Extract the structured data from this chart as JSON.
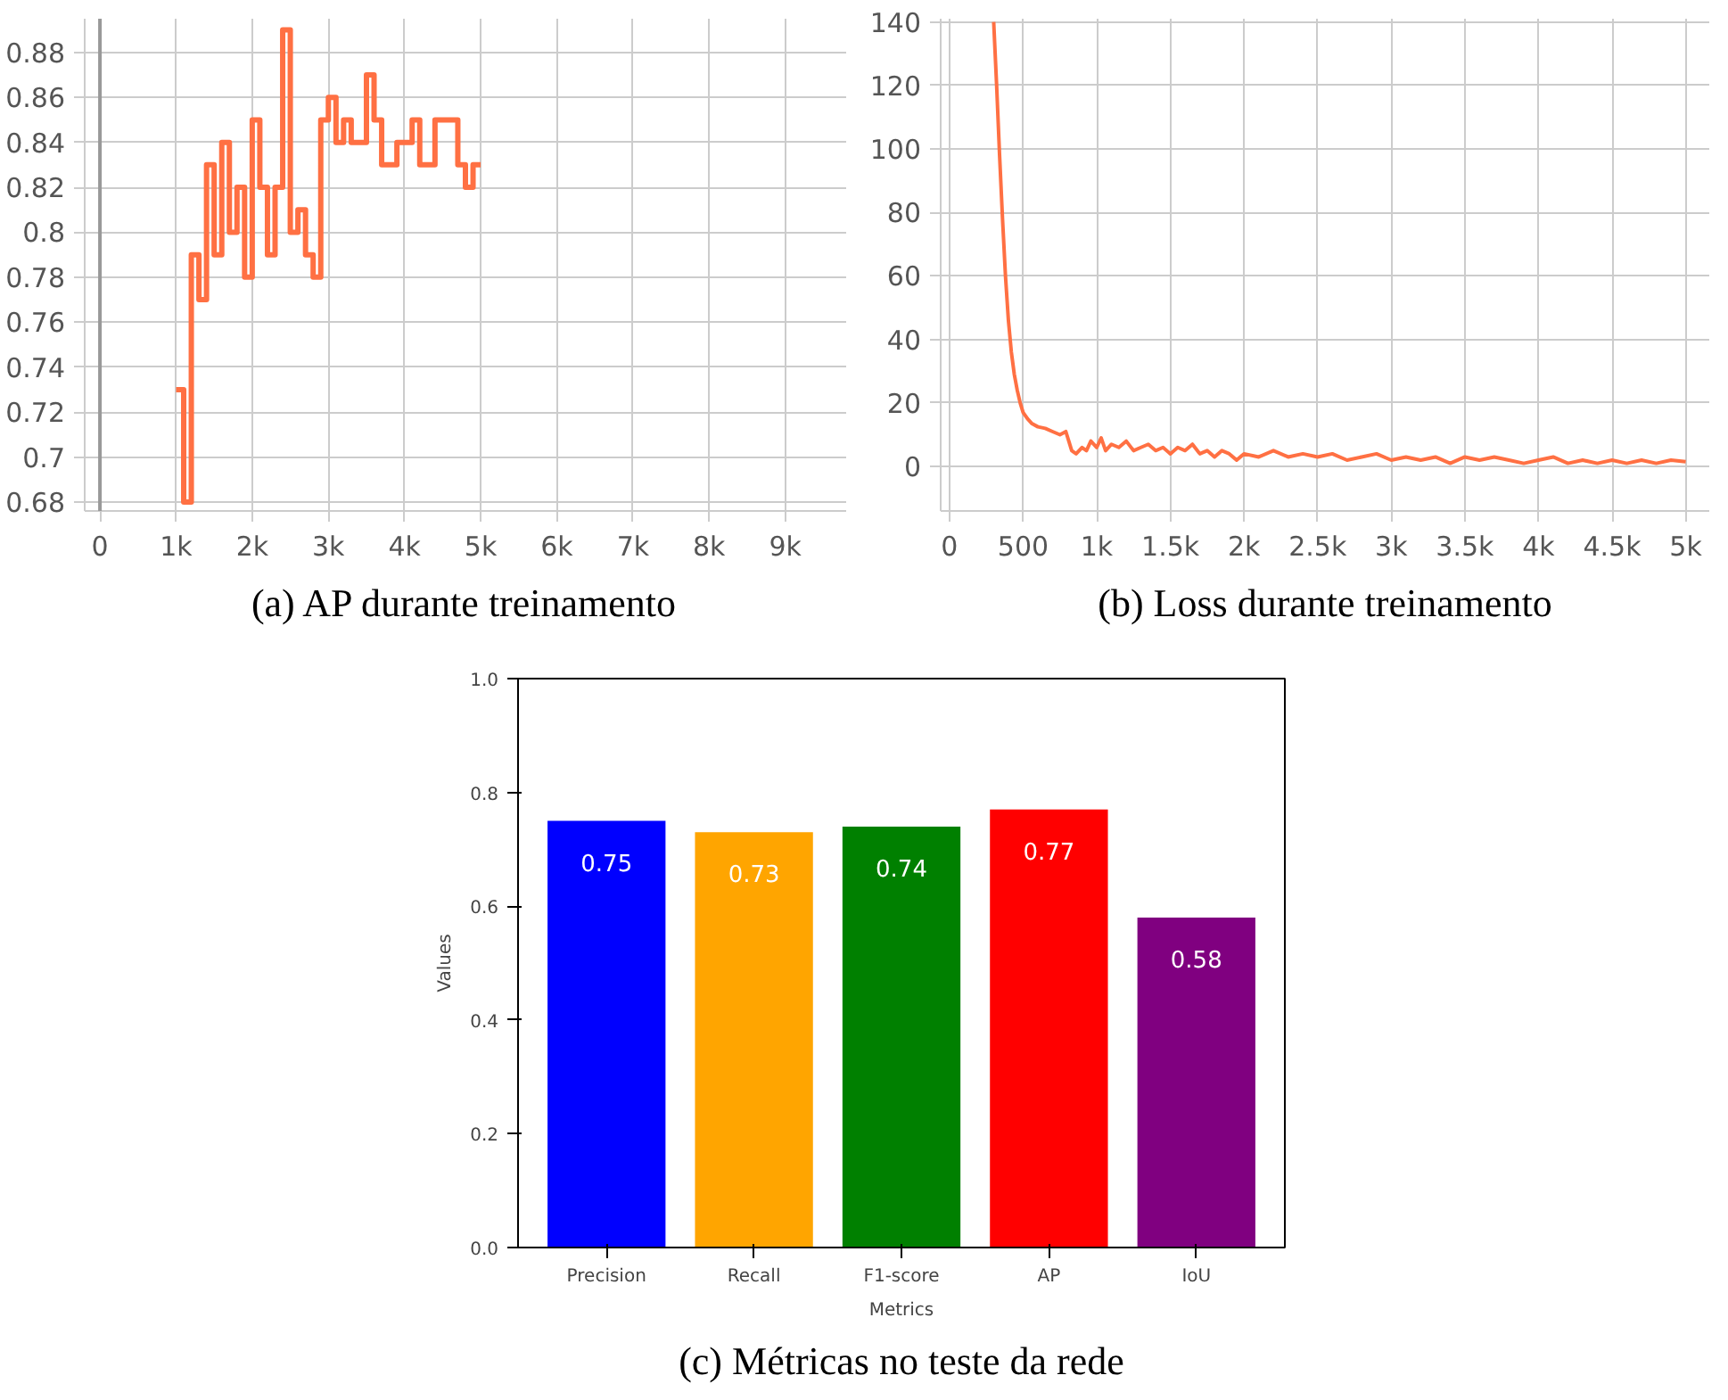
{
  "chart_data": [
    {
      "type": "step",
      "annotations": [
        "(a) AP durante treinamento"
      ],
      "grid": true,
      "xlim": [
        -200,
        9800
      ],
      "ylim": [
        0.676,
        0.895
      ],
      "xticks": [
        {
          "value": 0,
          "label": "0"
        },
        {
          "value": 1000,
          "label": "1k"
        },
        {
          "value": 2000,
          "label": "2k"
        },
        {
          "value": 3000,
          "label": "3k"
        },
        {
          "value": 4000,
          "label": "4k"
        },
        {
          "value": 5000,
          "label": "5k"
        },
        {
          "value": 6000,
          "label": "6k"
        },
        {
          "value": 7000,
          "label": "7k"
        },
        {
          "value": 8000,
          "label": "8k"
        },
        {
          "value": 9000,
          "label": "9k"
        }
      ],
      "yticks": [
        0.68,
        0.7,
        0.72,
        0.74,
        0.76,
        0.78,
        0.8,
        0.82,
        0.84,
        0.86,
        0.88
      ],
      "ref_lines": [
        {
          "axis": "x",
          "value": 0,
          "color": "#999999"
        }
      ],
      "series": [
        {
          "color": "#ff7043",
          "x": [
            1000,
            1100,
            1200,
            1300,
            1400,
            1500,
            1600,
            1700,
            1800,
            1900,
            2000,
            2100,
            2200,
            2300,
            2400,
            2500,
            2600,
            2700,
            2800,
            2900,
            3000,
            3100,
            3200,
            3300,
            3400,
            3500,
            3600,
            3700,
            3800,
            3900,
            4000,
            4100,
            4200,
            4300,
            4400,
            4500,
            4600,
            4700,
            4800,
            4900,
            5000
          ],
          "values": [
            0.73,
            0.68,
            0.79,
            0.77,
            0.83,
            0.79,
            0.84,
            0.8,
            0.82,
            0.78,
            0.85,
            0.82,
            0.79,
            0.82,
            0.89,
            0.8,
            0.81,
            0.79,
            0.78,
            0.85,
            0.86,
            0.84,
            0.85,
            0.84,
            0.84,
            0.87,
            0.85,
            0.83,
            0.83,
            0.84,
            0.84,
            0.85,
            0.83,
            0.83,
            0.85,
            0.85,
            0.85,
            0.83,
            0.82,
            0.83,
            0.83
          ]
        }
      ]
    },
    {
      "type": "line",
      "annotations": [
        "(b) Loss durante treinamento"
      ],
      "grid": true,
      "xlim": [
        -60,
        5160
      ],
      "ylim": [
        -14,
        141
      ],
      "xticks": [
        {
          "value": 0,
          "label": "0"
        },
        500,
        {
          "value": 1000,
          "label": "1k"
        },
        {
          "value": 1500,
          "label": "1.5k"
        },
        {
          "value": 2000,
          "label": "2k"
        },
        {
          "value": 2500,
          "label": "2.5k"
        },
        {
          "value": 3000,
          "label": "3k"
        },
        {
          "value": 3500,
          "label": "3.5k"
        },
        {
          "value": 4000,
          "label": "4k"
        },
        {
          "value": 4500,
          "label": "4.5k"
        },
        {
          "value": 5000,
          "label": "5k"
        }
      ],
      "yticks": [
        0,
        20,
        40,
        60,
        80,
        100,
        120,
        140
      ],
      "series": [
        {
          "color": "#ff7043",
          "x": [
            300,
            320,
            340,
            360,
            380,
            400,
            420,
            440,
            460,
            480,
            500,
            530,
            560,
            600,
            650,
            700,
            750,
            790,
            810,
            830,
            860,
            900,
            930,
            960,
            1000,
            1030,
            1060,
            1100,
            1150,
            1200,
            1250,
            1300,
            1350,
            1400,
            1450,
            1500,
            1550,
            1600,
            1650,
            1700,
            1750,
            1800,
            1850,
            1900,
            1950,
            2000,
            2100,
            2200,
            2300,
            2400,
            2500,
            2600,
            2700,
            2800,
            2900,
            3000,
            3100,
            3200,
            3300,
            3400,
            3500,
            3600,
            3700,
            3800,
            3900,
            4000,
            4100,
            4200,
            4300,
            4400,
            4500,
            4600,
            4700,
            4800,
            4900,
            5000
          ],
          "values": [
            140,
            120,
            98,
            78,
            60,
            46,
            36,
            29,
            24,
            20,
            17,
            15,
            13.5,
            12.5,
            12,
            11,
            10,
            11,
            8,
            5,
            4,
            6,
            5,
            8,
            6,
            9,
            5,
            7,
            6,
            8,
            5,
            6,
            7,
            5,
            6,
            4,
            6,
            5,
            7,
            4,
            5,
            3,
            5,
            4,
            2,
            4,
            3,
            5,
            3,
            4,
            3,
            4,
            2,
            3,
            4,
            2,
            3,
            2,
            3,
            1,
            3,
            2,
            3,
            2,
            1,
            2,
            3,
            1,
            2,
            1,
            2,
            1,
            2,
            1,
            2,
            1.5
          ]
        }
      ]
    },
    {
      "type": "bar",
      "annotations": [
        "(c) Métricas no teste da rede"
      ],
      "grid": false,
      "data_labels": true,
      "xlabel": "Metrics",
      "ylabel": "Values",
      "categories": [
        "Precision",
        "Recall",
        "F1-score",
        "AP",
        "IoU"
      ],
      "values": [
        0.75,
        0.73,
        0.74,
        0.77,
        0.58
      ],
      "colors": [
        "#0000ff",
        "#ffa500",
        "#008000",
        "#ff0000",
        "#800080"
      ],
      "ylim": [
        0,
        1
      ],
      "yticks": [
        {
          "value": 0,
          "label": "0.0"
        },
        {
          "value": 0.2,
          "label": "0.2"
        },
        {
          "value": 0.4,
          "label": "0.4"
        },
        {
          "value": 0.6,
          "label": "0.6"
        },
        {
          "value": 0.8,
          "label": "0.8"
        },
        {
          "value": 1,
          "label": "1.0"
        }
      ]
    }
  ]
}
